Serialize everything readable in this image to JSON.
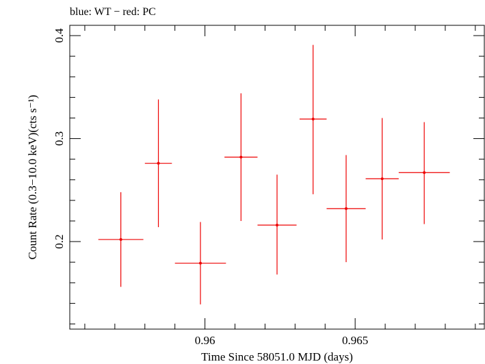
{
  "chart_data": {
    "type": "scatter",
    "title": "blue: WT − red: PC",
    "xlabel": "Time Since 58051.0 MJD (days)",
    "ylabel": "Count Rate (0.3−10.0 keV)(cts s⁻¹)",
    "xlim": [
      0.9555,
      0.9693
    ],
    "ylim": [
      0.115,
      0.41
    ],
    "x_ticks": [
      {
        "value": 0.96,
        "label": "0.96"
      },
      {
        "value": 0.965,
        "label": "0.965"
      }
    ],
    "y_ticks": [
      {
        "value": 0.2,
        "label": "0.2"
      },
      {
        "value": 0.3,
        "label": "0.3"
      },
      {
        "value": 0.4,
        "label": "0.4"
      }
    ],
    "x_minor_step": 0.001,
    "y_minor_step": 0.02,
    "grid": false,
    "series": [
      {
        "name": "PC",
        "color": "#ee0000",
        "points": [
          {
            "x": 0.9572,
            "xerr": 0.00075,
            "y": 0.202,
            "yerr_lo": 0.046,
            "yerr_hi": 0.046
          },
          {
            "x": 0.95845,
            "xerr": 0.00045,
            "y": 0.276,
            "yerr_lo": 0.062,
            "yerr_hi": 0.062
          },
          {
            "x": 0.95985,
            "xerr": 0.00085,
            "y": 0.179,
            "yerr_lo": 0.04,
            "yerr_hi": 0.04
          },
          {
            "x": 0.9612,
            "xerr": 0.00055,
            "y": 0.282,
            "yerr_lo": 0.062,
            "yerr_hi": 0.062
          },
          {
            "x": 0.9624,
            "xerr": 0.00065,
            "y": 0.216,
            "yerr_lo": 0.048,
            "yerr_hi": 0.049
          },
          {
            "x": 0.9636,
            "xerr": 0.00045,
            "y": 0.319,
            "yerr_lo": 0.073,
            "yerr_hi": 0.072
          },
          {
            "x": 0.9647,
            "xerr": 0.00065,
            "y": 0.232,
            "yerr_lo": 0.052,
            "yerr_hi": 0.052
          },
          {
            "x": 0.9659,
            "xerr": 0.00055,
            "y": 0.261,
            "yerr_lo": 0.059,
            "yerr_hi": 0.059
          },
          {
            "x": 0.9673,
            "xerr": 0.00085,
            "y": 0.267,
            "yerr_lo": 0.05,
            "yerr_hi": 0.049
          }
        ]
      }
    ]
  }
}
